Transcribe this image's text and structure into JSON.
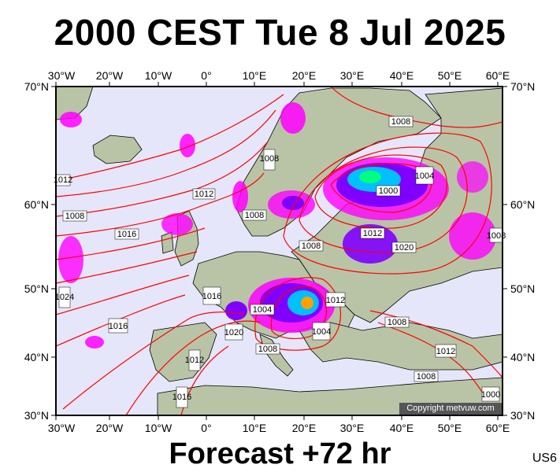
{
  "header": {
    "title": "2000 CEST Tue 8 Jul 2025"
  },
  "footer": {
    "forecast": "Forecast +72 hr",
    "model_code": "US6"
  },
  "copyright": "Copyright metvuw.com",
  "map": {
    "lon_labels": [
      "30°W",
      "20°W",
      "10°W",
      "0°",
      "10°E",
      "20°E",
      "30°E",
      "40°E",
      "50°E",
      "60°E"
    ],
    "lat_labels": [
      "70°N",
      "60°N",
      "50°N",
      "40°N",
      "30°N"
    ],
    "isobar_labels": [
      "1008",
      "1008",
      "1004",
      "1000",
      "1012",
      "1008",
      "1016",
      "1008",
      "1008",
      "1012",
      "1020",
      "1016",
      "1004",
      "1012",
      "1020",
      "1024",
      "1016",
      "1004",
      "1008",
      "1012",
      "1008",
      "1012",
      "1008",
      "1016",
      "1012",
      "1000",
      "1008"
    ],
    "colors": {
      "sea": "#e6e6fa",
      "land": "#b9c4a6",
      "isobar": "#ff0000",
      "precip_light": "#ff00ff",
      "precip_mid": "#8000ff",
      "precip_heavy": "#00c0ff"
    }
  }
}
